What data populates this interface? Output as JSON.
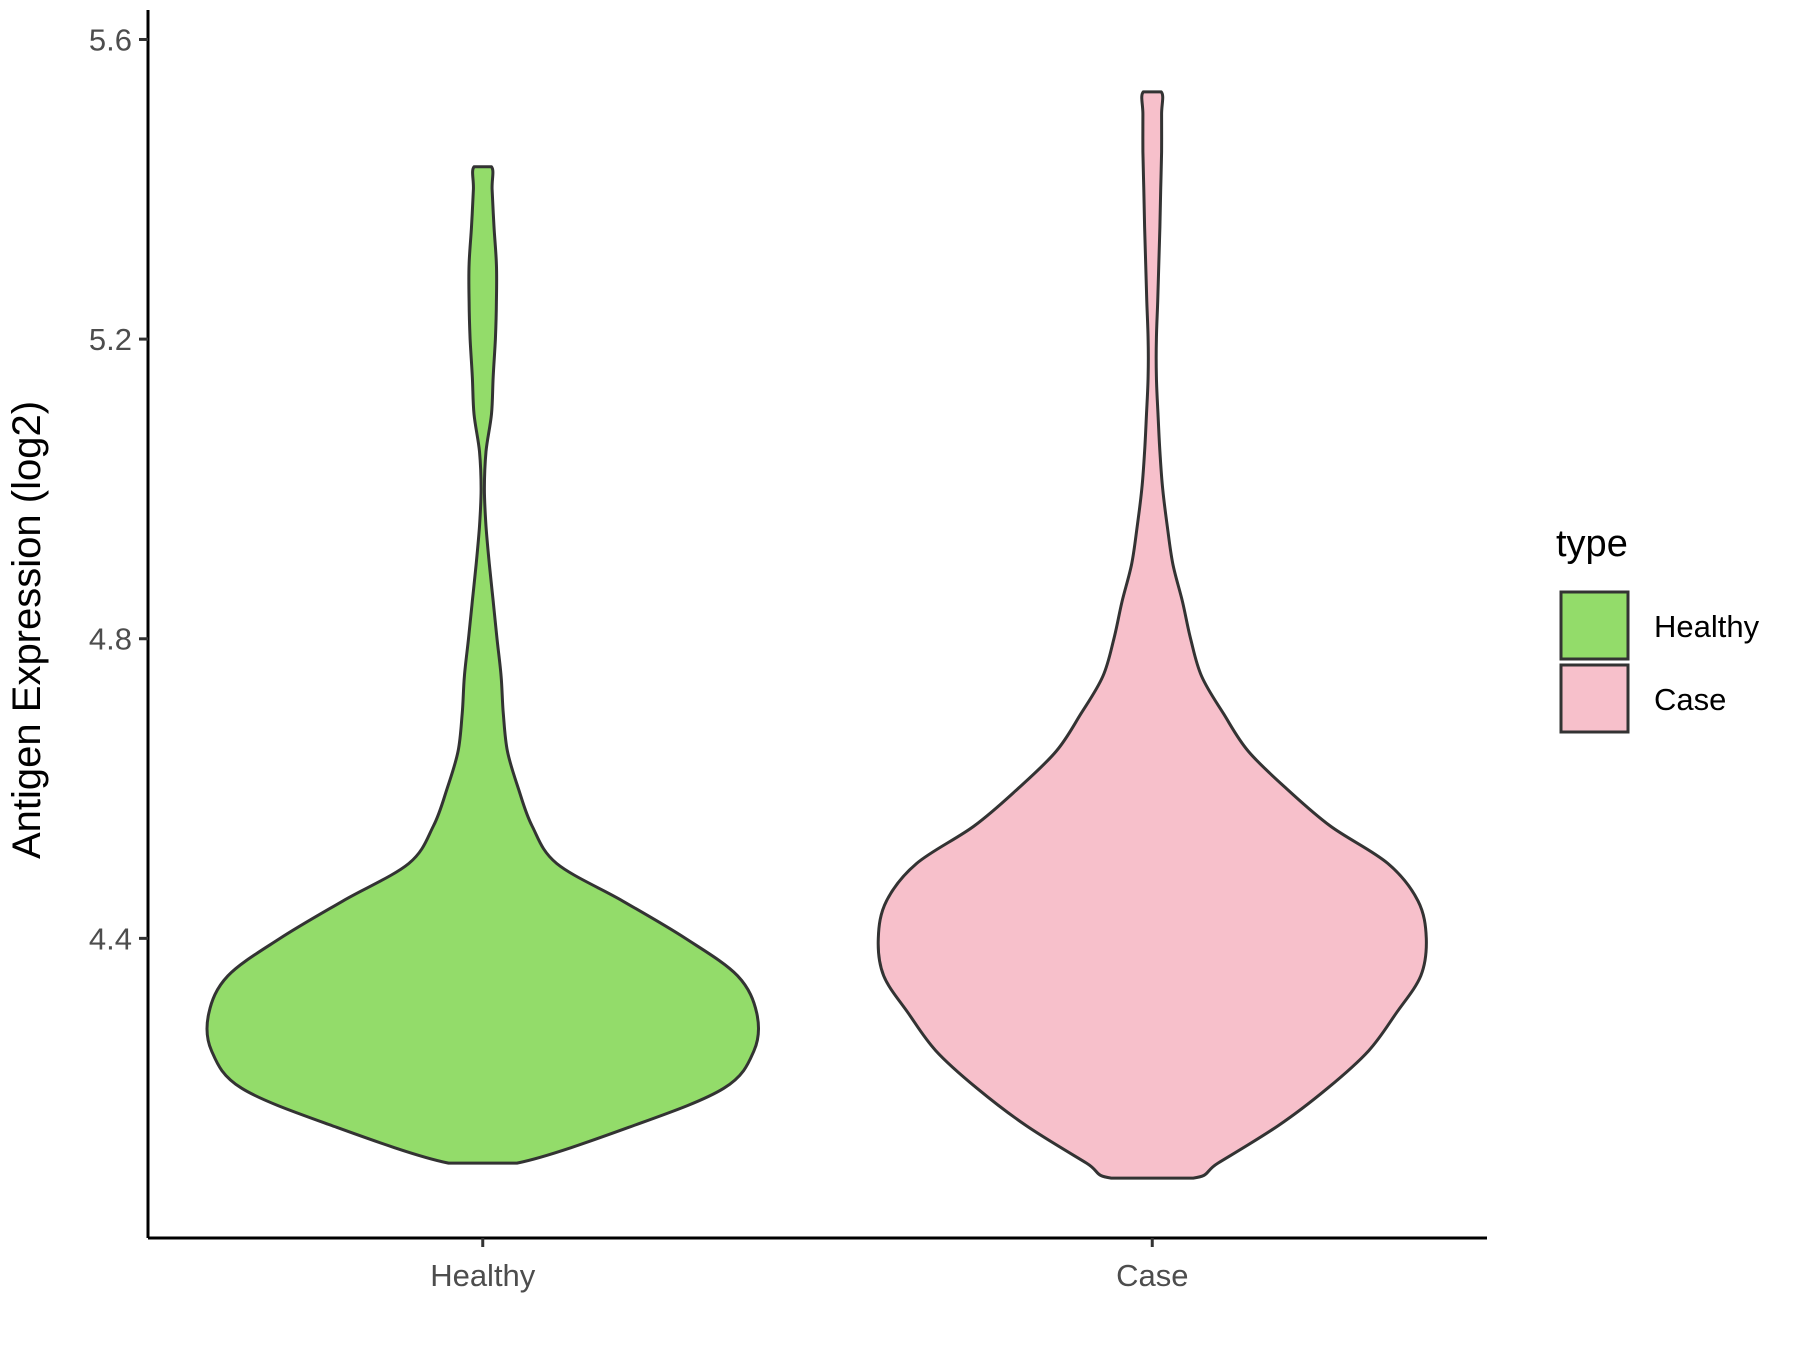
{
  "chart_data": {
    "type": "violin",
    "title": "",
    "xlabel": "",
    "ylabel": "Antigen Expression (log2)",
    "ylim": [
      4.0,
      5.62
    ],
    "yticks": [
      "4.4",
      "4.8",
      "5.2",
      "5.6"
    ],
    "categories": [
      "Healthy",
      "Case"
    ],
    "legend": {
      "title": "type",
      "placement": "right"
    },
    "series": [
      {
        "name": "Healthy",
        "color": "#93DC6A",
        "min": 4.1,
        "max": 5.43,
        "density": [
          [
            4.1,
            0.125
          ],
          [
            4.15,
            0.55
          ],
          [
            4.2,
            0.88
          ],
          [
            4.25,
            0.99
          ],
          [
            4.3,
            1.0
          ],
          [
            4.35,
            0.93
          ],
          [
            4.4,
            0.74
          ],
          [
            4.45,
            0.51
          ],
          [
            4.5,
            0.27
          ],
          [
            4.55,
            0.18
          ],
          [
            4.6,
            0.13
          ],
          [
            4.65,
            0.09
          ],
          [
            4.7,
            0.075
          ],
          [
            4.75,
            0.067
          ],
          [
            4.8,
            0.052
          ],
          [
            4.85,
            0.038
          ],
          [
            4.9,
            0.024
          ],
          [
            4.95,
            0.012
          ],
          [
            5.0,
            0.006
          ],
          [
            5.05,
            0.012
          ],
          [
            5.1,
            0.032
          ],
          [
            5.15,
            0.038
          ],
          [
            5.2,
            0.046
          ],
          [
            5.25,
            0.05
          ],
          [
            5.3,
            0.05
          ],
          [
            5.35,
            0.041
          ],
          [
            5.4,
            0.034
          ],
          [
            5.43,
            0.032
          ]
        ]
      },
      {
        "name": "Case",
        "color": "#F7C0CB",
        "min": 4.08,
        "max": 5.53,
        "density": [
          [
            4.08,
            0.15
          ],
          [
            4.1,
            0.24
          ],
          [
            4.15,
            0.46
          ],
          [
            4.2,
            0.64
          ],
          [
            4.25,
            0.79
          ],
          [
            4.3,
            0.89
          ],
          [
            4.35,
            0.98
          ],
          [
            4.4,
            1.0
          ],
          [
            4.45,
            0.97
          ],
          [
            4.5,
            0.86
          ],
          [
            4.55,
            0.65
          ],
          [
            4.6,
            0.49
          ],
          [
            4.65,
            0.35
          ],
          [
            4.7,
            0.26
          ],
          [
            4.75,
            0.18
          ],
          [
            4.8,
            0.14
          ],
          [
            4.85,
            0.11
          ],
          [
            4.9,
            0.075
          ],
          [
            4.95,
            0.055
          ],
          [
            5.0,
            0.038
          ],
          [
            5.05,
            0.028
          ],
          [
            5.1,
            0.021
          ],
          [
            5.15,
            0.015
          ],
          [
            5.2,
            0.015
          ],
          [
            5.25,
            0.02
          ],
          [
            5.3,
            0.024
          ],
          [
            5.35,
            0.028
          ],
          [
            5.4,
            0.031
          ],
          [
            5.45,
            0.034
          ],
          [
            5.5,
            0.034
          ],
          [
            5.53,
            0.033
          ]
        ]
      }
    ]
  }
}
